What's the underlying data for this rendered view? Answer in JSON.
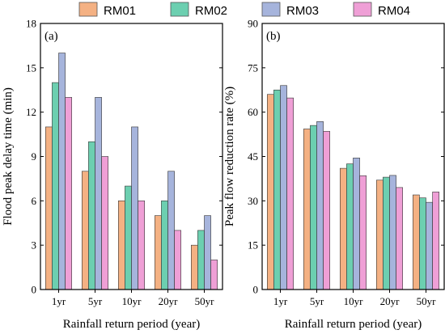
{
  "legend": [
    {
      "name": "RM01",
      "color": "#f4b183"
    },
    {
      "name": "RM02",
      "color": "#6ccfb0"
    },
    {
      "name": "RM03",
      "color": "#a6b4dc"
    },
    {
      "name": "RM04",
      "color": "#ef9fd6"
    }
  ],
  "chart_data": [
    {
      "type": "bar",
      "panel_label": "(a)",
      "categories": [
        "1yr",
        "5yr",
        "10yr",
        "20yr",
        "50yr"
      ],
      "series": [
        {
          "name": "RM01",
          "values": [
            11,
            8,
            6,
            5,
            3
          ]
        },
        {
          "name": "RM02",
          "values": [
            14,
            10,
            7,
            6,
            4
          ]
        },
        {
          "name": "RM03",
          "values": [
            16,
            13,
            11,
            8,
            5
          ]
        },
        {
          "name": "RM04",
          "values": [
            13,
            9,
            6,
            4,
            2
          ]
        }
      ],
      "xlabel": "Rainfall return period (year)",
      "ylabel": "Flood peak delay time (min)",
      "ylim": [
        0,
        18
      ],
      "yticks": [
        0,
        3,
        6,
        9,
        12,
        15,
        18
      ],
      "grid": false
    },
    {
      "type": "bar",
      "panel_label": "(b)",
      "categories": [
        "1yr",
        "5yr",
        "10yr",
        "20yr",
        "50yr"
      ],
      "series": [
        {
          "name": "RM01",
          "values": [
            66,
            54.3,
            41,
            37,
            32
          ]
        },
        {
          "name": "RM02",
          "values": [
            67.5,
            55.5,
            42.5,
            38,
            31
          ]
        },
        {
          "name": "RM03",
          "values": [
            69,
            56.8,
            44.5,
            38.6,
            29.5
          ]
        },
        {
          "name": "RM04",
          "values": [
            64.8,
            53.5,
            38.5,
            34.5,
            33
          ]
        }
      ],
      "xlabel": "Rainfall return period (year)",
      "ylabel": "Peak flow reduction rate (%)",
      "ylim": [
        0,
        90
      ],
      "yticks": [
        0,
        15,
        30,
        45,
        60,
        75,
        90
      ],
      "grid": false
    }
  ]
}
